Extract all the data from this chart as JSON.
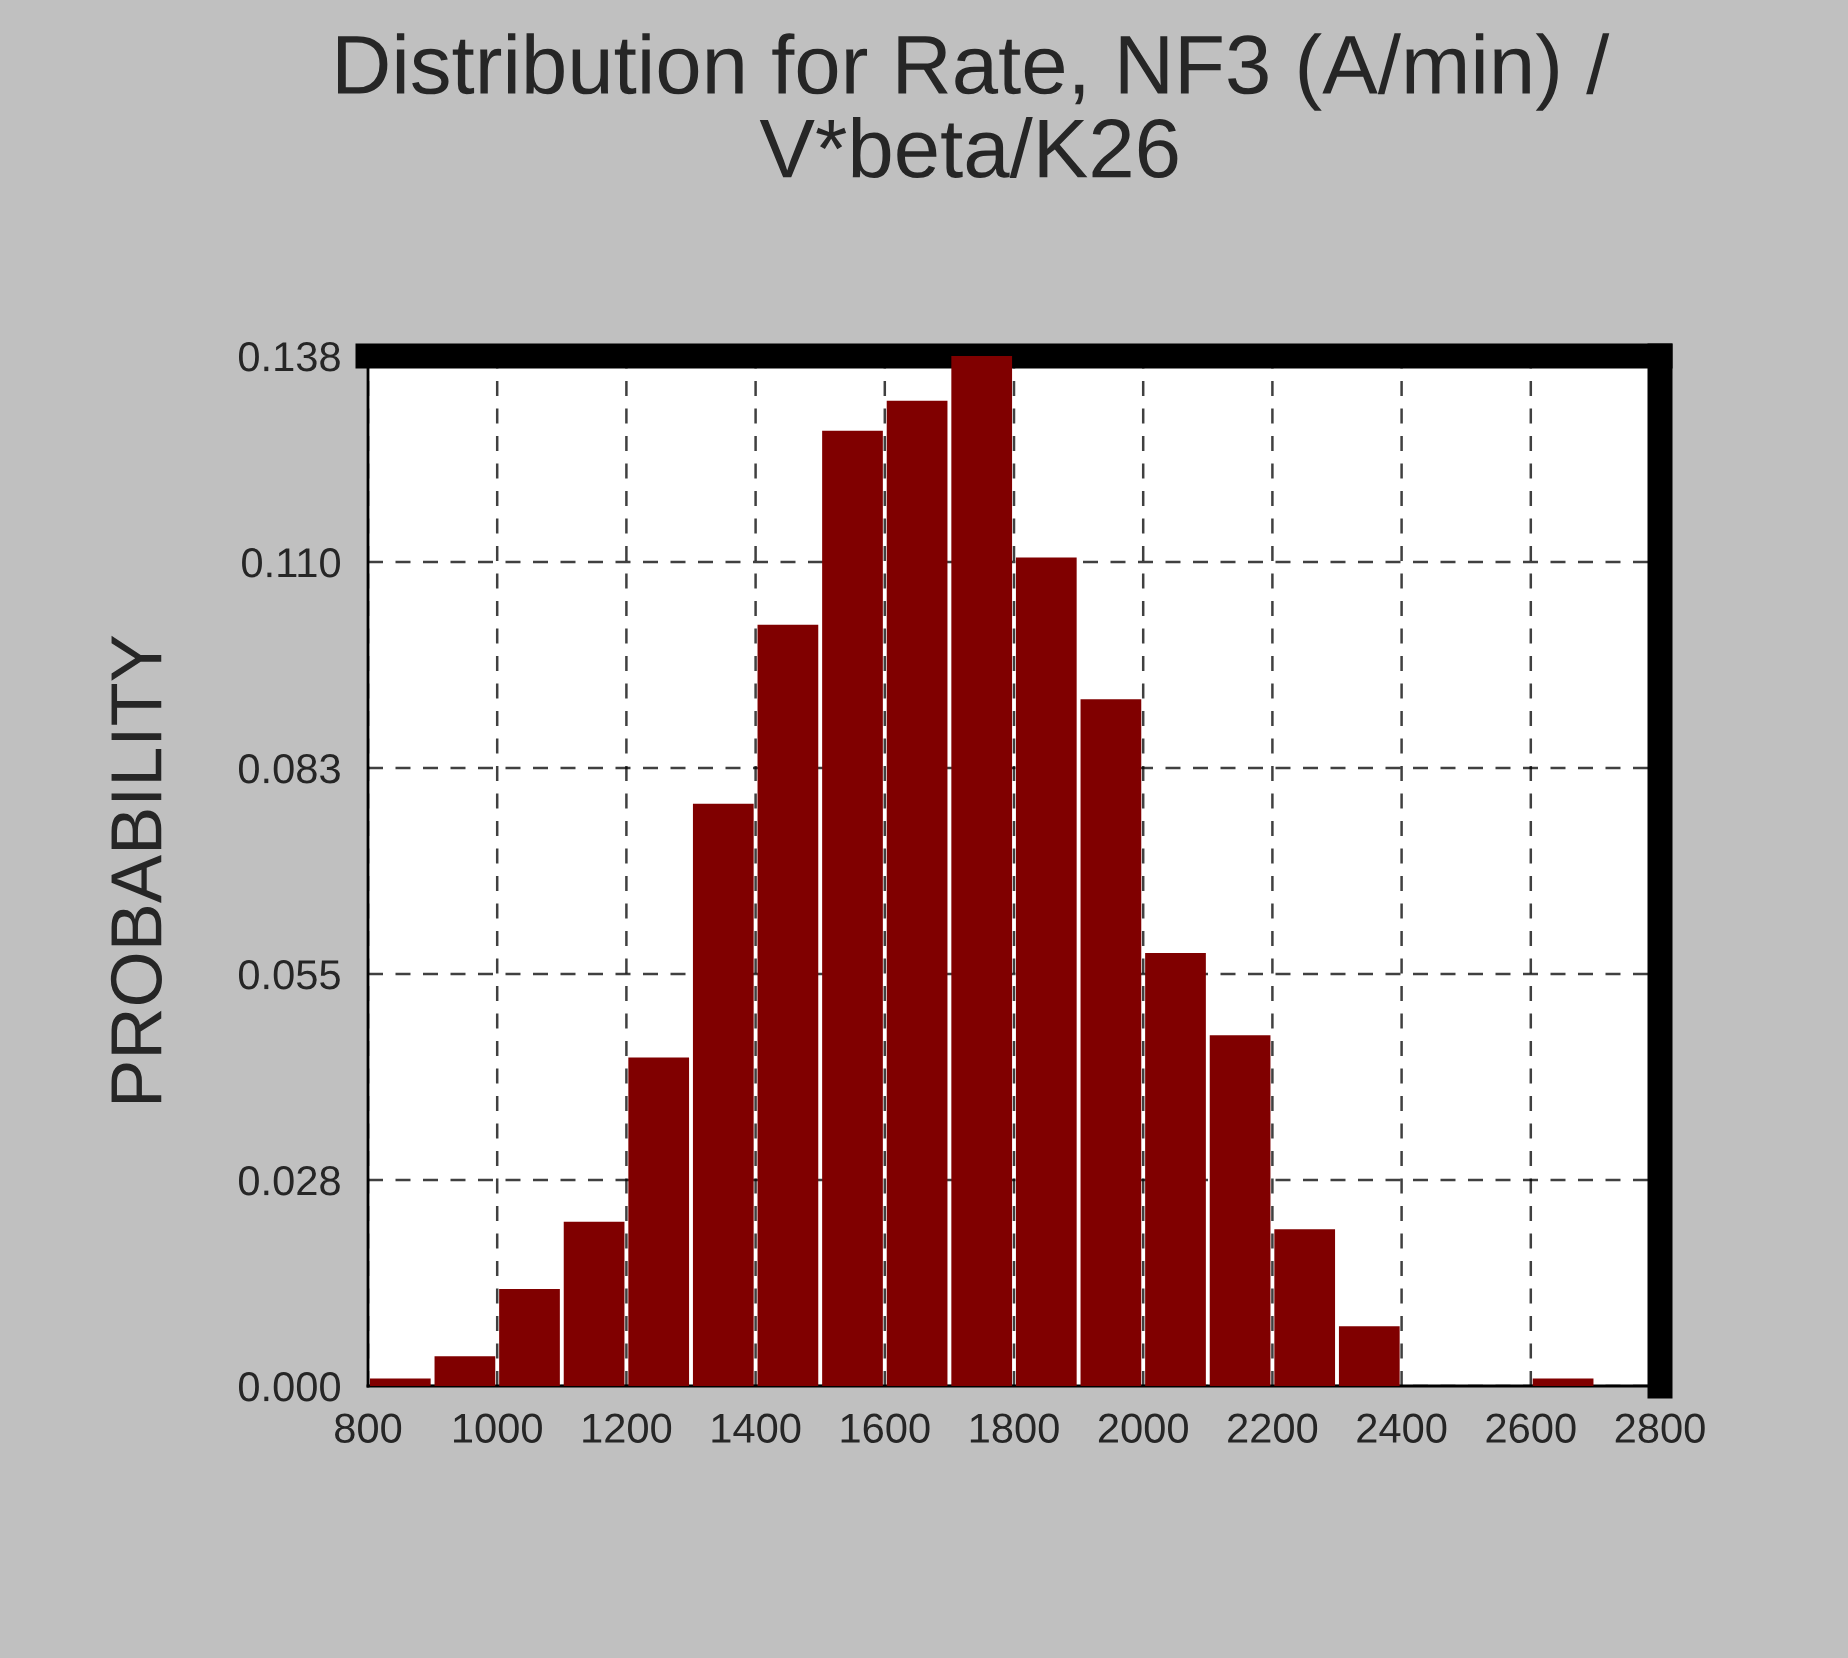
{
  "chart_data": {
    "type": "histogram",
    "title": "Distribution for Rate, NF3 (A/min) /\nV*beta/K26",
    "ylabel": "PROBABILITY",
    "bins": [
      800,
      900,
      1000,
      1100,
      1200,
      1300,
      1400,
      1500,
      1600,
      1700,
      1800,
      1900,
      2000,
      2100,
      2200,
      2300,
      2400,
      2500,
      2600,
      2700
    ],
    "values": [
      0.001,
      0.004,
      0.013,
      0.022,
      0.044,
      0.078,
      0.102,
      0.128,
      0.132,
      0.138,
      0.111,
      0.092,
      0.058,
      0.047,
      0.021,
      0.008,
      0,
      0,
      0.001
    ],
    "color": "#800000",
    "xlim": [
      800,
      2800
    ],
    "xticks": [
      800,
      1000,
      1200,
      1400,
      1600,
      1800,
      2000,
      2200,
      2400,
      2600,
      2800
    ],
    "ylim": [
      0,
      0.138
    ],
    "yticks": [
      {
        "value": 0,
        "label": "0.000"
      },
      {
        "value": 0.0276,
        "label": "0.028"
      },
      {
        "value": 0.0552,
        "label": "0.055"
      },
      {
        "value": 0.0828,
        "label": "0.083"
      },
      {
        "value": 0.1104,
        "label": "0.110"
      },
      {
        "value": 0.138,
        "label": "0.138"
      }
    ],
    "grid": true,
    "legend": false
  }
}
